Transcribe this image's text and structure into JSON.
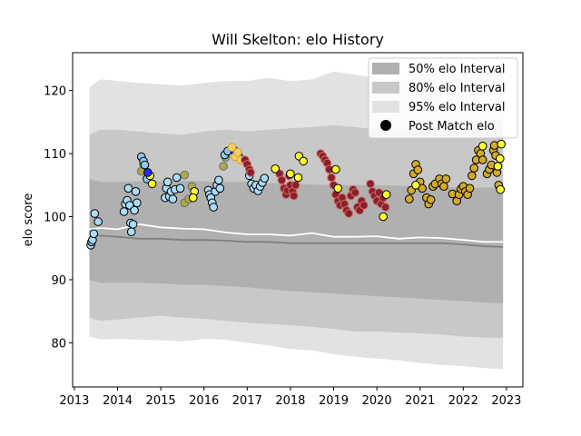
{
  "chart_data": {
    "type": "scatter",
    "title": "Will Skelton: elo History",
    "xlabel": "",
    "ylabel": "elo score",
    "xlim": [
      2012.96,
      2023.38
    ],
    "ylim": [
      73.0,
      126.0
    ],
    "x_ticks": [
      2013,
      2014,
      2015,
      2016,
      2017,
      2018,
      2019,
      2020,
      2021,
      2022,
      2023
    ],
    "y_ticks": [
      80,
      90,
      100,
      110,
      120
    ],
    "grid": false,
    "legend_position": "top-right",
    "legend": [
      {
        "label": "50% elo Interval",
        "kind": "band",
        "color": "#b0b0b0"
      },
      {
        "label": "80% elo Interval",
        "kind": "band",
        "color": "#c8c8c8"
      },
      {
        "label": "95% elo Interval",
        "kind": "band",
        "color": "#e2e2e2"
      },
      {
        "label": "Post Match elo",
        "kind": "marker",
        "color": "#000000"
      }
    ],
    "bands": {
      "x": [
        2013.35,
        2013.6,
        2014.0,
        2014.5,
        2015.0,
        2015.5,
        2016.0,
        2016.5,
        2017.0,
        2017.5,
        2018.0,
        2018.5,
        2019.0,
        2019.5,
        2020.0,
        2020.5,
        2021.0,
        2021.5,
        2022.0,
        2022.5,
        2022.92
      ],
      "p95_upper": [
        120.5,
        121.8,
        121.5,
        121.2,
        121.0,
        120.8,
        121.2,
        121.5,
        121.5,
        122.0,
        121.5,
        121.8,
        123.0,
        122.5,
        122.0,
        121.5,
        122.5,
        123.2,
        123.0,
        123.5,
        123.8
      ],
      "p95_lower": [
        81.0,
        80.5,
        80.6,
        80.5,
        80.4,
        80.2,
        80.6,
        80.5,
        80.0,
        79.6,
        79.0,
        78.8,
        78.2,
        77.8,
        77.5,
        77.2,
        76.8,
        76.5,
        76.3,
        76.0,
        75.8
      ],
      "p80_upper": [
        113.0,
        113.8,
        113.8,
        113.5,
        113.2,
        113.0,
        113.5,
        113.8,
        113.5,
        113.8,
        114.0,
        114.2,
        114.5,
        114.2,
        113.8,
        113.5,
        114.0,
        114.5,
        114.8,
        115.0,
        115.2
      ],
      "p80_lower": [
        84.0,
        83.5,
        83.7,
        84.0,
        84.3,
        84.0,
        83.8,
        83.5,
        83.2,
        83.0,
        82.8,
        82.5,
        82.2,
        81.8,
        81.8,
        81.6,
        81.5,
        81.3,
        81.0,
        80.8,
        80.8
      ],
      "p50_upper": [
        106.0,
        105.5,
        105.5,
        105.6,
        105.6,
        105.7,
        105.6,
        105.5,
        105.5,
        105.3,
        105.2,
        105.1,
        105.0,
        105.0,
        105.0,
        104.9,
        104.8,
        104.7,
        104.6,
        104.6,
        104.6
      ],
      "p50_lower": [
        90.0,
        89.5,
        89.5,
        89.5,
        89.4,
        89.2,
        89.2,
        89.0,
        88.8,
        88.5,
        88.2,
        88.0,
        87.8,
        87.6,
        87.4,
        87.2,
        87.0,
        86.8,
        86.6,
        86.4,
        86.3
      ],
      "median": [
        97.0,
        97.0,
        96.8,
        96.5,
        96.5,
        96.3,
        96.3,
        96.2,
        96.0,
        96.0,
        95.8,
        95.8,
        95.8,
        95.8,
        95.8,
        95.8,
        95.8,
        95.8,
        95.6,
        95.3,
        95.2
      ],
      "mean": [
        98.0,
        98.2,
        98.0,
        98.8,
        98.3,
        98.1,
        98.0,
        97.5,
        97.2,
        97.2,
        97.0,
        97.4,
        96.8,
        96.8,
        96.9,
        96.5,
        96.7,
        96.6,
        96.3,
        96.0,
        96.0
      ],
      "colors": {
        "p95": "#e2e2e2",
        "p80": "#c8c8c8",
        "p50": "#b0b0b0",
        "median": "#7f7f7f",
        "mean": "#ffffff"
      }
    },
    "series": [
      {
        "fill": "#aadcf8",
        "edge": "#000000",
        "points": [
          [
            2013.38,
            95.5
          ],
          [
            2013.4,
            96.0
          ],
          [
            2013.42,
            96.3
          ],
          [
            2013.45,
            97.3
          ],
          [
            2013.47,
            100.5
          ],
          [
            2013.55,
            99.2
          ],
          [
            2014.15,
            100.8
          ],
          [
            2014.18,
            102.0
          ],
          [
            2014.22,
            102.6
          ],
          [
            2014.25,
            104.5
          ],
          [
            2014.28,
            101.8
          ],
          [
            2014.3,
            99.0
          ],
          [
            2014.32,
            97.6
          ],
          [
            2014.36,
            98.8
          ],
          [
            2014.39,
            101.0
          ],
          [
            2014.42,
            104.0
          ],
          [
            2014.45,
            102.2
          ],
          [
            2015.1,
            103.0
          ],
          [
            2015.13,
            104.5
          ],
          [
            2015.16,
            105.5
          ],
          [
            2015.2,
            103.2
          ],
          [
            2015.24,
            104.0
          ],
          [
            2015.28,
            102.8
          ],
          [
            2015.33,
            104.3
          ],
          [
            2015.37,
            106.2
          ],
          [
            2015.45,
            104.5
          ],
          [
            2016.1,
            104.2
          ],
          [
            2016.13,
            103.5
          ],
          [
            2016.16,
            103.0
          ],
          [
            2016.19,
            102.2
          ],
          [
            2016.22,
            101.5
          ],
          [
            2016.26,
            104.0
          ],
          [
            2016.3,
            105.0
          ],
          [
            2016.34,
            105.8
          ],
          [
            2016.37,
            104.5
          ],
          [
            2017.05,
            106.5
          ],
          [
            2017.1,
            105.2
          ],
          [
            2017.15,
            104.5
          ],
          [
            2017.2,
            105.0
          ],
          [
            2017.25,
            104.1
          ],
          [
            2017.3,
            104.8
          ],
          [
            2017.35,
            105.4
          ],
          [
            2017.4,
            106.1
          ]
        ]
      },
      {
        "fill": "#b5a642",
        "edge": "#5a7080",
        "points": [
          [
            2014.55,
            107.2
          ],
          [
            2014.6,
            108.3
          ],
          [
            2015.55,
            102.2
          ],
          [
            2015.65,
            102.8
          ],
          [
            2015.72,
            104.8
          ],
          [
            2015.55,
            106.6
          ],
          [
            2016.45,
            108.0
          ],
          [
            2016.5,
            109.4
          ]
        ]
      },
      {
        "fill": "#8ec8f0",
        "edge": "#000000",
        "points": [
          [
            2014.55,
            109.5
          ],
          [
            2014.6,
            108.8
          ],
          [
            2014.63,
            108.2
          ],
          [
            2014.68,
            106.0
          ],
          [
            2016.48,
            109.8
          ],
          [
            2016.55,
            110.4
          ]
        ]
      },
      {
        "fill": "#ffff33",
        "edge": "#000000",
        "points": [
          [
            2014.75,
            106.5
          ],
          [
            2014.8,
            105.2
          ],
          [
            2015.78,
            104.0
          ],
          [
            2015.75,
            103.0
          ]
        ]
      },
      {
        "fill": "#2a2aff",
        "edge": "#000000",
        "points": [
          [
            2014.7,
            107.0
          ],
          [
            2016.7,
            110.5
          ],
          [
            2016.8,
            109.6
          ]
        ]
      },
      {
        "fill": "#f5d060",
        "edge": "#d4a030",
        "points": [
          [
            2016.65,
            111.0
          ],
          [
            2016.72,
            109.5
          ],
          [
            2016.78,
            110.2
          ],
          [
            2016.85,
            109.0
          ]
        ]
      },
      {
        "fill": "#8b1f2e",
        "edge": "#cc7060",
        "points": [
          [
            2016.95,
            109.0
          ],
          [
            2017.0,
            108.3
          ],
          [
            2017.05,
            107.5
          ],
          [
            2017.08,
            107.0
          ],
          [
            2017.75,
            106.8
          ],
          [
            2017.8,
            105.8
          ],
          [
            2017.85,
            104.5
          ],
          [
            2017.9,
            103.5
          ],
          [
            2017.93,
            104.2
          ],
          [
            2017.97,
            106.5
          ],
          [
            2018.0,
            105.0
          ],
          [
            2018.05,
            104.0
          ],
          [
            2018.08,
            103.3
          ],
          [
            2018.12,
            105.0
          ],
          [
            2018.7,
            110.0
          ],
          [
            2018.75,
            109.6
          ],
          [
            2018.8,
            109.0
          ],
          [
            2018.85,
            108.5
          ],
          [
            2018.9,
            107.5
          ],
          [
            2018.95,
            106.2
          ],
          [
            2019.0,
            105.0
          ],
          [
            2019.05,
            103.5
          ],
          [
            2019.1,
            102.5
          ],
          [
            2019.15,
            101.8
          ],
          [
            2019.2,
            103.0
          ],
          [
            2019.25,
            102.0
          ],
          [
            2019.3,
            101.0
          ],
          [
            2019.35,
            100.5
          ],
          [
            2019.4,
            103.3
          ],
          [
            2019.45,
            104.3
          ],
          [
            2019.5,
            103.8
          ],
          [
            2019.55,
            101.5
          ],
          [
            2019.6,
            101.0
          ],
          [
            2019.65,
            102.5
          ],
          [
            2019.7,
            101.8
          ],
          [
            2019.85,
            105.2
          ],
          [
            2019.9,
            104.0
          ],
          [
            2019.95,
            103.3
          ],
          [
            2020.0,
            102.5
          ],
          [
            2020.05,
            103.8
          ],
          [
            2020.1,
            102.0
          ],
          [
            2020.15,
            103.0
          ],
          [
            2020.2,
            101.5
          ]
        ]
      },
      {
        "fill": "#ffff33",
        "edge": "#000000",
        "points": [
          [
            2017.65,
            107.6
          ],
          [
            2018.0,
            106.8
          ],
          [
            2018.18,
            106.2
          ],
          [
            2018.2,
            109.6
          ],
          [
            2018.3,
            108.8
          ],
          [
            2019.05,
            107.5
          ],
          [
            2019.1,
            104.5
          ],
          [
            2020.15,
            100.0
          ],
          [
            2020.22,
            103.5
          ]
        ]
      },
      {
        "fill": "#d4aa2a",
        "edge": "#000000",
        "points": [
          [
            2020.75,
            102.8
          ],
          [
            2020.8,
            104.2
          ],
          [
            2020.85,
            106.8
          ],
          [
            2020.9,
            108.3
          ],
          [
            2020.95,
            107.4
          ],
          [
            2021.0,
            105.5
          ],
          [
            2021.05,
            104.5
          ],
          [
            2021.15,
            103.0
          ],
          [
            2021.2,
            102.0
          ],
          [
            2021.25,
            102.7
          ],
          [
            2021.3,
            104.8
          ],
          [
            2021.35,
            105.2
          ],
          [
            2021.45,
            106.0
          ],
          [
            2021.5,
            105.2
          ],
          [
            2021.55,
            104.8
          ],
          [
            2021.6,
            106.0
          ],
          [
            2021.75,
            103.6
          ],
          [
            2021.85,
            102.5
          ],
          [
            2021.9,
            103.5
          ],
          [
            2021.95,
            104.4
          ],
          [
            2022.0,
            104.8
          ],
          [
            2022.05,
            104.0
          ],
          [
            2022.1,
            103.5
          ],
          [
            2022.15,
            104.5
          ],
          [
            2022.2,
            106.5
          ],
          [
            2022.25,
            107.7
          ],
          [
            2022.3,
            109.0
          ],
          [
            2022.35,
            110.5
          ],
          [
            2022.4,
            110.0
          ],
          [
            2022.45,
            109.0
          ],
          [
            2022.55,
            106.8
          ],
          [
            2022.6,
            107.5
          ],
          [
            2022.65,
            108.2
          ],
          [
            2022.7,
            110.5
          ],
          [
            2022.72,
            111.3
          ],
          [
            2022.75,
            109.7
          ],
          [
            2022.78,
            107.0
          ],
          [
            2022.82,
            105.0
          ]
        ]
      },
      {
        "fill": "#ffff33",
        "edge": "#000000",
        "points": [
          [
            2020.9,
            105.0
          ],
          [
            2022.45,
            111.2
          ],
          [
            2022.85,
            109.2
          ],
          [
            2022.88,
            111.5
          ],
          [
            2022.8,
            108.0
          ],
          [
            2022.86,
            104.3
          ]
        ]
      }
    ]
  }
}
